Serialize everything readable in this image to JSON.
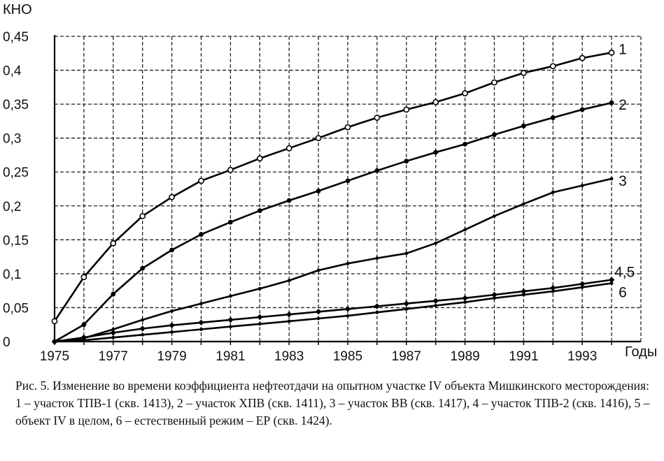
{
  "chart_data": {
    "type": "line",
    "ylabel": "КНО",
    "xlabel": "Годы",
    "xlim": [
      1975,
      1995
    ],
    "ylim": [
      0,
      0.45
    ],
    "yticks": [
      "0",
      "0,05",
      "0,1",
      "0,15",
      "0,2",
      "0,25",
      "0,3",
      "0,35",
      "0,4",
      "0,45"
    ],
    "xticks": [
      "1975",
      "1977",
      "1979",
      "1981",
      "1983",
      "1985",
      "1987",
      "1989",
      "1991",
      "1993"
    ],
    "grid": true,
    "series": [
      {
        "label": "1",
        "x": [
          1975,
          1976,
          1977,
          1978,
          1979,
          1980,
          1981,
          1982,
          1983,
          1984,
          1985,
          1986,
          1987,
          1988,
          1989,
          1990,
          1991,
          1992,
          1993,
          1994
        ],
        "y": [
          0.03,
          0.095,
          0.145,
          0.185,
          0.213,
          0.237,
          0.253,
          0.27,
          0.285,
          0.3,
          0.316,
          0.33,
          0.342,
          0.353,
          0.366,
          0.382,
          0.396,
          0.406,
          0.418,
          0.426
        ]
      },
      {
        "label": "2",
        "x": [
          1975,
          1976,
          1977,
          1978,
          1979,
          1980,
          1981,
          1982,
          1983,
          1984,
          1985,
          1986,
          1987,
          1988,
          1989,
          1990,
          1991,
          1992,
          1993,
          1994
        ],
        "y": [
          0,
          0.025,
          0.07,
          0.108,
          0.135,
          0.158,
          0.176,
          0.193,
          0.208,
          0.222,
          0.237,
          0.252,
          0.266,
          0.279,
          0.291,
          0.305,
          0.318,
          0.33,
          0.342,
          0.352
        ]
      },
      {
        "label": "3",
        "x": [
          1975,
          1976,
          1977,
          1978,
          1979,
          1980,
          1981,
          1982,
          1983,
          1984,
          1985,
          1986,
          1987,
          1988,
          1989,
          1990,
          1991,
          1992,
          1993,
          1994
        ],
        "y": [
          0,
          0.005,
          0.018,
          0.032,
          0.045,
          0.056,
          0.067,
          0.078,
          0.09,
          0.105,
          0.115,
          0.123,
          0.13,
          0.145,
          0.165,
          0.185,
          0.203,
          0.22,
          0.23,
          0.24
        ]
      },
      {
        "label": "4,5",
        "x": [
          1975,
          1976,
          1977,
          1978,
          1979,
          1980,
          1981,
          1982,
          1983,
          1984,
          1985,
          1986,
          1987,
          1988,
          1989,
          1990,
          1991,
          1992,
          1993,
          1994
        ],
        "y": [
          0,
          0.006,
          0.013,
          0.019,
          0.024,
          0.028,
          0.032,
          0.036,
          0.04,
          0.044,
          0.048,
          0.052,
          0.056,
          0.06,
          0.064,
          0.069,
          0.074,
          0.079,
          0.085,
          0.091
        ]
      },
      {
        "label": "6",
        "x": [
          1975,
          1976,
          1977,
          1978,
          1979,
          1980,
          1981,
          1982,
          1983,
          1984,
          1985,
          1986,
          1987,
          1988,
          1989,
          1990,
          1991,
          1992,
          1993,
          1994
        ],
        "y": [
          0,
          0.002,
          0.006,
          0.01,
          0.014,
          0.018,
          0.022,
          0.026,
          0.03,
          0.034,
          0.038,
          0.043,
          0.048,
          0.053,
          0.058,
          0.064,
          0.069,
          0.074,
          0.08,
          0.086
        ]
      }
    ],
    "curve_labels": [
      "1",
      "2",
      "3",
      "4,5",
      "6"
    ]
  },
  "caption": {
    "line1": "Рис. 5. Изменение во времени коэффициента нефтеотдачи на опытном участке IV объекта Мишкинского месторождения:",
    "line2": "1 – участок ТПВ-1 (скв. 1413), 2 – участок ХПВ (скв. 1411), 3 – участок ВВ (скв. 1417), 4 – участок ТПВ-2 (скв. 1416), 5 – объект IV в целом, 6 – естественный режим – ЕР (скв. 1424)."
  }
}
